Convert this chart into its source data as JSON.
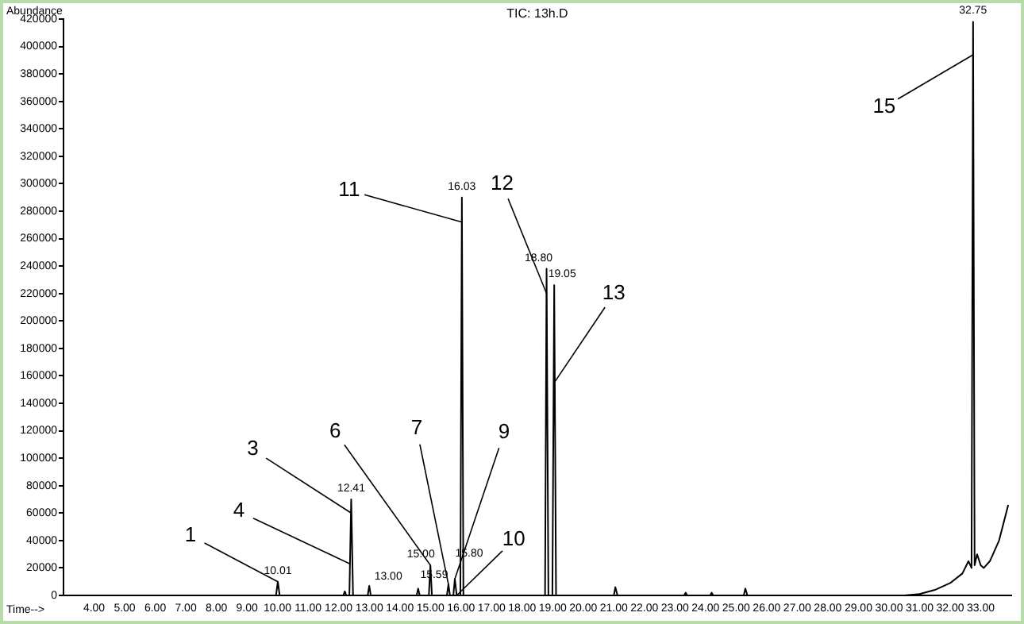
{
  "chart_data": {
    "type": "line",
    "title": "TIC: 13h.D",
    "xlabel": "Time-->",
    "ylabel": "Abundance",
    "marker": "none",
    "grid": false,
    "legend": false,
    "line_style": "solid",
    "xlim": [
      3,
      34
    ],
    "xticks": [
      {
        "value": 4,
        "label": "4.00"
      },
      {
        "value": 5,
        "label": "5.00"
      },
      {
        "value": 6,
        "label": "6.00"
      },
      {
        "value": 7,
        "label": "7.00"
      },
      {
        "value": 8,
        "label": "8.00"
      },
      {
        "value": 9,
        "label": "9.00"
      },
      {
        "value": 10,
        "label": "10.00"
      },
      {
        "value": 11,
        "label": "11.00"
      },
      {
        "value": 12,
        "label": "12.00"
      },
      {
        "value": 13,
        "label": "13.00"
      },
      {
        "value": 14,
        "label": "14.00"
      },
      {
        "value": 15,
        "label": "15.00"
      },
      {
        "value": 16,
        "label": "16.00"
      },
      {
        "value": 17,
        "label": "17.00"
      },
      {
        "value": 18,
        "label": "18.00"
      },
      {
        "value": 19,
        "label": "19.00"
      },
      {
        "value": 20,
        "label": "20.00"
      },
      {
        "value": 21,
        "label": "21.00"
      },
      {
        "value": 22,
        "label": "22.00"
      },
      {
        "value": 23,
        "label": "23.00"
      },
      {
        "value": 24,
        "label": "24.00"
      },
      {
        "value": 25,
        "label": "25.00"
      },
      {
        "value": 26,
        "label": "26.00"
      },
      {
        "value": 27,
        "label": "27.00"
      },
      {
        "value": 28,
        "label": "28.00"
      },
      {
        "value": 29,
        "label": "29.00"
      },
      {
        "value": 30,
        "label": "30.00"
      },
      {
        "value": 31,
        "label": "31.00"
      },
      {
        "value": 32,
        "label": "32.00"
      },
      {
        "value": 33,
        "label": "33.00"
      }
    ],
    "ylim": [
      0,
      420000
    ],
    "yticks": [
      0,
      20000,
      40000,
      60000,
      80000,
      100000,
      120000,
      140000,
      160000,
      180000,
      200000,
      220000,
      240000,
      260000,
      280000,
      300000,
      320000,
      340000,
      360000,
      380000,
      400000,
      420000
    ],
    "series": [
      {
        "color": "#000000",
        "x": [
          9.95,
          10.01,
          10.07,
          12.15,
          12.2,
          12.25,
          12.35,
          12.41,
          12.47,
          12.95,
          13.0,
          13.05,
          14.55,
          14.6,
          14.65,
          14.95,
          15.0,
          15.05,
          15.54,
          15.59,
          15.64,
          15.75,
          15.8,
          15.86,
          15.98,
          16.03,
          16.08,
          18.75,
          18.8,
          18.86,
          18.99,
          19.05,
          19.11,
          21.0,
          21.05,
          21.12,
          23.3,
          23.35,
          23.4,
          24.15,
          24.2,
          24.25,
          25.25,
          25.3,
          25.37,
          30.5,
          31.0,
          31.5,
          32.0,
          32.4,
          32.6,
          32.7,
          32.75,
          32.8,
          32.88,
          33.0,
          33.1,
          33.3,
          33.6,
          33.9
        ],
        "values": [
          0,
          10000,
          0,
          0,
          3000,
          0,
          0,
          70000,
          0,
          0,
          7000,
          0,
          0,
          5000,
          0,
          0,
          22000,
          0,
          0,
          8000,
          0,
          0,
          12000,
          0,
          0,
          290000,
          0,
          0,
          238000,
          0,
          0,
          226000,
          0,
          0,
          6000,
          0,
          0,
          2000,
          0,
          0,
          2000,
          0,
          0,
          5000,
          0,
          0,
          1000,
          4000,
          9000,
          16000,
          25000,
          20000,
          418000,
          22000,
          30000,
          22000,
          20000,
          25000,
          40000,
          66000
        ]
      }
    ],
    "annotations": [
      {
        "text": "10.01",
        "x": 10.01,
        "y": 10000
      },
      {
        "text": "12.41",
        "x": 12.41,
        "y": 70000
      },
      {
        "text": "13.00",
        "x": 13.0,
        "y": 7000
      },
      {
        "text": "15.00",
        "x": 15.0,
        "y": 22000
      },
      {
        "text": "15.59",
        "x": 15.59,
        "y": 8000
      },
      {
        "text": "15.80",
        "x": 15.8,
        "y": 12000
      },
      {
        "text": "16.03",
        "x": 16.03,
        "y": 290000
      },
      {
        "text": "18.80",
        "x": 18.8,
        "y": 238000
      },
      {
        "text": "19.05",
        "x": 19.05,
        "y": 226000
      },
      {
        "text": "32.75",
        "x": 32.75,
        "y": 418000
      },
      {
        "text": "1",
        "x": 10.01,
        "y": 10000
      },
      {
        "text": "3",
        "x": 12.41,
        "y": 60000
      },
      {
        "text": "4",
        "x": 12.37,
        "y": 23000
      },
      {
        "text": "6",
        "x": 15.0,
        "y": 22000
      },
      {
        "text": "7",
        "x": 15.59,
        "y": 8000
      },
      {
        "text": "9",
        "x": 15.8,
        "y": 12000
      },
      {
        "text": "10",
        "x": 15.86,
        "y": 0
      },
      {
        "text": "11",
        "x": 16.03,
        "y": 272000
      },
      {
        "text": "12",
        "x": 18.8,
        "y": 220000
      },
      {
        "text": "13",
        "x": 19.08,
        "y": 156000
      },
      {
        "text": "15",
        "x": 32.75,
        "y": 394000
      }
    ]
  }
}
